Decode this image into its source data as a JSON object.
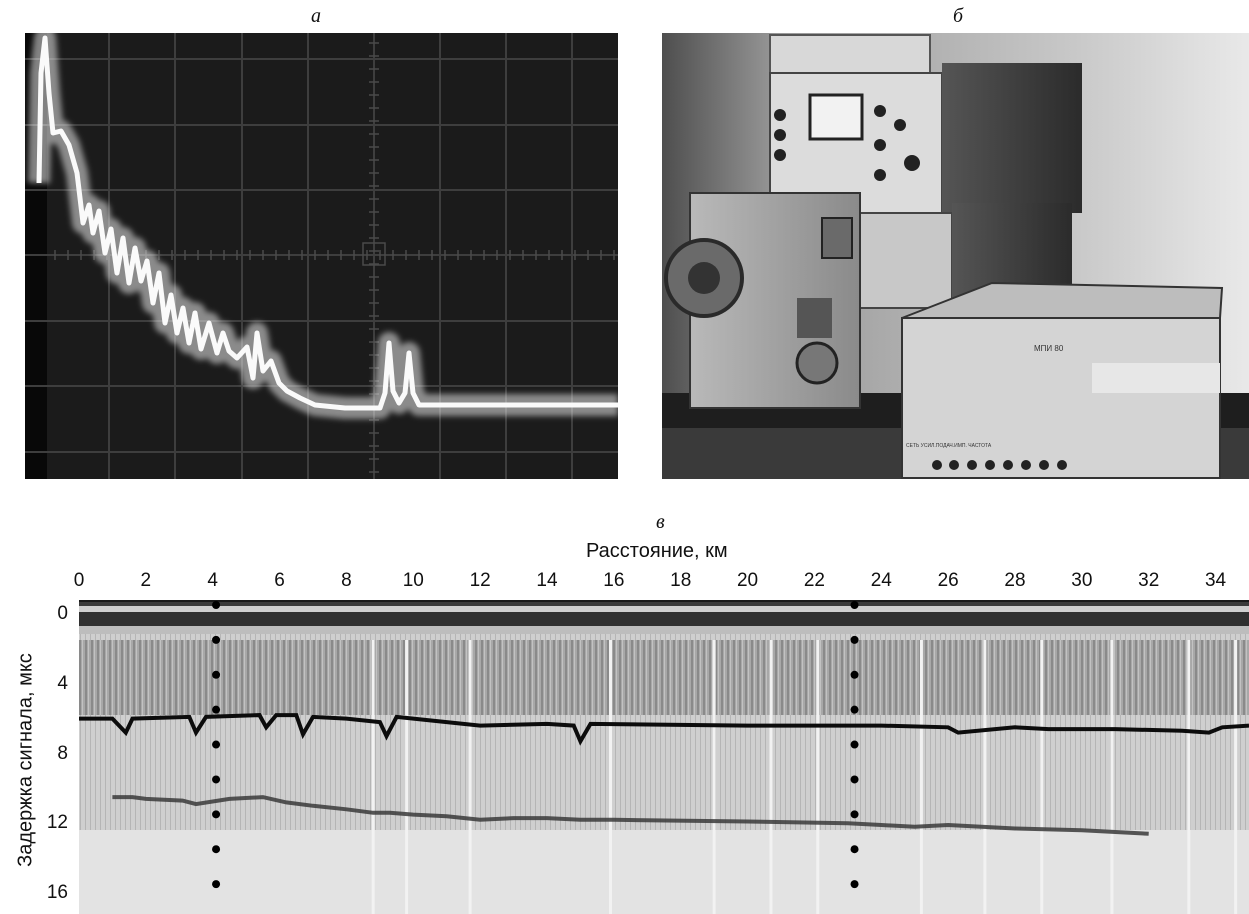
{
  "panels": {
    "a": {
      "label": "а"
    },
    "b": {
      "label": "б",
      "device_plate": "МПИ 80",
      "front_label": "СЕТЬ УСИЛ.ПОДАЧ.ИМП. ЧАСТОТА"
    },
    "c": {
      "label": "в"
    }
  },
  "chart_data": {
    "type": "heatmap",
    "xlabel": "Расстояние, км",
    "ylabel": "Задержка сигнала, мкс",
    "x_ticks": [
      "0",
      "2",
      "4",
      "6",
      "8",
      "10",
      "12",
      "14",
      "16",
      "18",
      "20",
      "22",
      "24",
      "26",
      "28",
      "30",
      "32",
      "34"
    ],
    "y_ticks": [
      "0",
      "4",
      "8",
      "12",
      "16"
    ],
    "xlim": [
      0,
      35
    ],
    "ylim": [
      0,
      18
    ],
    "markers_km": [
      4.1,
      23.2
    ],
    "surface_reflection": [
      [
        0,
        6.8
      ],
      [
        1,
        6.8
      ],
      [
        1.4,
        7.6
      ],
      [
        1.6,
        6.8
      ],
      [
        3.3,
        6.7
      ],
      [
        3.5,
        7.6
      ],
      [
        3.8,
        6.7
      ],
      [
        5.4,
        6.6
      ],
      [
        5.6,
        7.3
      ],
      [
        5.9,
        6.6
      ],
      [
        6.5,
        6.6
      ],
      [
        6.7,
        7.7
      ],
      [
        7.0,
        6.7
      ],
      [
        8.0,
        6.8
      ],
      [
        9.0,
        7.0
      ],
      [
        9.2,
        7.8
      ],
      [
        9.5,
        6.7
      ],
      [
        12,
        7.2
      ],
      [
        14,
        7.1
      ],
      [
        14.8,
        7.2
      ],
      [
        15.0,
        8.1
      ],
      [
        15.3,
        7.1
      ],
      [
        20,
        7.2
      ],
      [
        24,
        7.2
      ],
      [
        26,
        7.3
      ],
      [
        26.3,
        7.6
      ],
      [
        28,
        7.3
      ],
      [
        29.0,
        7.4
      ],
      [
        31,
        7.4
      ],
      [
        33,
        7.5
      ],
      [
        33.8,
        7.6
      ],
      [
        34.2,
        7.3
      ],
      [
        35,
        7.2
      ]
    ],
    "bottom_reflection": [
      [
        1,
        11.3
      ],
      [
        1.6,
        11.3
      ],
      [
        2,
        11.4
      ],
      [
        3.1,
        11.5
      ],
      [
        3.5,
        11.7
      ],
      [
        4.5,
        11.4
      ],
      [
        5.5,
        11.3
      ],
      [
        6.2,
        11.6
      ],
      [
        7,
        11.8
      ],
      [
        8,
        12.0
      ],
      [
        8.8,
        12.2
      ],
      [
        9.3,
        12.2
      ],
      [
        10,
        12.3
      ],
      [
        11,
        12.4
      ],
      [
        12,
        12.6
      ],
      [
        13,
        12.5
      ],
      [
        14,
        12.5
      ],
      [
        15,
        12.6
      ],
      [
        16,
        12.6
      ],
      [
        20,
        12.7
      ],
      [
        23,
        12.8
      ],
      [
        24,
        12.9
      ],
      [
        25,
        13.0
      ],
      [
        26,
        12.9
      ],
      [
        28,
        13.1
      ],
      [
        30,
        13.2
      ],
      [
        31,
        13.3
      ],
      [
        32,
        13.4
      ]
    ]
  }
}
